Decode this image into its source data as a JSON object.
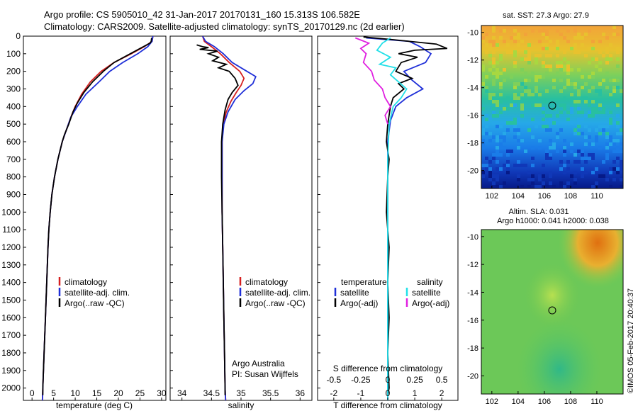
{
  "title_line1": "Argo profile: CS 5905010_42 31-Jan-2017 20170131_160 15.313S 106.582E",
  "title_line2": "Climatology: CARS2009. Satellite-adjusted climatology: synTS_20170129.nc (2d earlier)",
  "watermark": "©IMOS 05-Feb-2017 20:40:37",
  "colors": {
    "climatology": "#d62020",
    "satellite": "#1f2fd8",
    "argo": "#000000",
    "sat_salinity": "#22e0e8",
    "argo_salinity": "#e020e0"
  },
  "chart_data": [
    {
      "type": "line",
      "panel": "temperature",
      "xlabel": "temperature (deg C)",
      "ylabel": "",
      "xlim": [
        -2,
        31
      ],
      "ylim": [
        2070,
        0
      ],
      "xticks": [
        0,
        5,
        10,
        15,
        20,
        25,
        30
      ],
      "yticks": [
        0,
        100,
        200,
        300,
        400,
        500,
        600,
        700,
        800,
        900,
        1000,
        1100,
        1200,
        1300,
        1400,
        1500,
        1600,
        1700,
        1800,
        1900,
        2000
      ],
      "legend": [
        "climatology",
        "satellite-adj. clim.",
        "Argo(..raw -QC)"
      ],
      "legend_position": "lower-center",
      "series": [
        {
          "name": "climatology",
          "color": "#d62020",
          "points": [
            [
              28,
              0
            ],
            [
              27.8,
              30
            ],
            [
              26,
              60
            ],
            [
              23,
              100
            ],
            [
              19,
              150
            ],
            [
              16,
              200
            ],
            [
              13.5,
              260
            ],
            [
              11.5,
              330
            ],
            [
              10,
              400
            ],
            [
              9,
              460
            ],
            [
              8,
              530
            ],
            [
              7,
              600
            ],
            [
              6,
              700
            ],
            [
              5.2,
              800
            ],
            [
              4.6,
              900
            ],
            [
              4.2,
              1000
            ],
            [
              3.9,
              1100
            ],
            [
              3.7,
              1200
            ],
            [
              3.4,
              1400
            ],
            [
              3.1,
              1600
            ],
            [
              2.8,
              1800
            ],
            [
              2.5,
              2000
            ],
            [
              2.4,
              2070
            ]
          ]
        },
        {
          "name": "satellite-adj. clim.",
          "color": "#1f2fd8",
          "points": [
            [
              28,
              0
            ],
            [
              27.8,
              30
            ],
            [
              26.8,
              60
            ],
            [
              24.5,
              100
            ],
            [
              21,
              150
            ],
            [
              18,
              200
            ],
            [
              15.5,
              260
            ],
            [
              12.5,
              330
            ],
            [
              10.5,
              400
            ],
            [
              9,
              460
            ],
            [
              8,
              530
            ],
            [
              7,
              600
            ],
            [
              6,
              700
            ],
            [
              5.2,
              800
            ],
            [
              4.6,
              900
            ],
            [
              4.2,
              1000
            ],
            [
              3.9,
              1100
            ],
            [
              3.7,
              1200
            ],
            [
              3.4,
              1400
            ],
            [
              3.1,
              1600
            ],
            [
              2.8,
              1800
            ],
            [
              2.5,
              2000
            ],
            [
              2.4,
              2070
            ]
          ]
        },
        {
          "name": "Argo(..raw -QC)",
          "color": "#000000",
          "points": [
            [
              27.7,
              10
            ],
            [
              27.6,
              30
            ],
            [
              27.3,
              40
            ],
            [
              25,
              70
            ],
            [
              22,
              110
            ],
            [
              19,
              150
            ],
            [
              16.5,
              200
            ],
            [
              14,
              260
            ],
            [
              12,
              320
            ],
            [
              10.5,
              380
            ],
            [
              9.5,
              430
            ],
            [
              8.5,
              500
            ],
            [
              7.5,
              560
            ],
            [
              7,
              600
            ],
            [
              6,
              700
            ],
            [
              5.2,
              800
            ],
            [
              4.6,
              900
            ],
            [
              4.2,
              1000
            ],
            [
              3.9,
              1100
            ],
            [
              3.7,
              1200
            ],
            [
              3.4,
              1400
            ],
            [
              3.1,
              1600
            ],
            [
              2.8,
              1800
            ],
            [
              2.5,
              2000
            ],
            [
              2.5,
              2040
            ]
          ]
        }
      ]
    },
    {
      "type": "line",
      "panel": "salinity",
      "xlabel": "salinity",
      "xlim": [
        33.8,
        36.2
      ],
      "ylim": [
        2070,
        0
      ],
      "xticks": [
        34,
        34.5,
        35,
        35.5,
        36
      ],
      "legend": [
        "climatology",
        "satellite-adj. clim.",
        "Argo(..raw -QC)"
      ],
      "legend_position": "lower-center",
      "annotation_lines": [
        "Argo Australia",
        "PI: Susan Wijffels"
      ],
      "series": [
        {
          "name": "climatology",
          "color": "#d62020",
          "points": [
            [
              34.35,
              0
            ],
            [
              34.38,
              30
            ],
            [
              34.5,
              60
            ],
            [
              34.65,
              100
            ],
            [
              34.8,
              150
            ],
            [
              34.98,
              200
            ],
            [
              35.05,
              240
            ],
            [
              35.0,
              280
            ],
            [
              34.92,
              320
            ],
            [
              34.83,
              370
            ],
            [
              34.75,
              430
            ],
            [
              34.7,
              500
            ],
            [
              34.68,
              600
            ],
            [
              34.68,
              800
            ],
            [
              34.68,
              1000
            ],
            [
              34.69,
              1200
            ],
            [
              34.7,
              1400
            ],
            [
              34.71,
              1600
            ],
            [
              34.72,
              1800
            ],
            [
              34.73,
              2000
            ],
            [
              34.74,
              2070
            ]
          ]
        },
        {
          "name": "satellite-adj. clim.",
          "color": "#1f2fd8",
          "points": [
            [
              34.35,
              0
            ],
            [
              34.4,
              30
            ],
            [
              34.55,
              60
            ],
            [
              34.7,
              100
            ],
            [
              34.85,
              150
            ],
            [
              35.05,
              190
            ],
            [
              35.25,
              230
            ],
            [
              35.2,
              270
            ],
            [
              35.05,
              310
            ],
            [
              34.9,
              360
            ],
            [
              34.78,
              430
            ],
            [
              34.71,
              500
            ],
            [
              34.68,
              600
            ],
            [
              34.68,
              800
            ],
            [
              34.68,
              1000
            ],
            [
              34.69,
              1200
            ],
            [
              34.7,
              1400
            ],
            [
              34.71,
              1600
            ],
            [
              34.72,
              1800
            ],
            [
              34.73,
              2000
            ],
            [
              34.74,
              2070
            ]
          ]
        },
        {
          "name": "Argo(..raw -QC)",
          "color": "#000000",
          "points": [
            [
              34.25,
              50
            ],
            [
              34.35,
              60
            ],
            [
              34.45,
              65
            ],
            [
              34.3,
              75
            ],
            [
              34.6,
              85
            ],
            [
              34.45,
              100
            ],
            [
              34.62,
              120
            ],
            [
              34.52,
              140
            ],
            [
              34.75,
              160
            ],
            [
              34.62,
              180
            ],
            [
              34.8,
              200
            ],
            [
              34.9,
              240
            ],
            [
              34.95,
              280
            ],
            [
              34.85,
              320
            ],
            [
              34.78,
              360
            ],
            [
              34.73,
              420
            ],
            [
              34.69,
              500
            ],
            [
              34.67,
              600
            ],
            [
              34.67,
              800
            ],
            [
              34.68,
              1000
            ],
            [
              34.69,
              1200
            ],
            [
              34.7,
              1400
            ],
            [
              34.71,
              1600
            ],
            [
              34.72,
              1800
            ],
            [
              34.73,
              2000
            ],
            [
              34.73,
              2040
            ]
          ]
        }
      ]
    },
    {
      "type": "line",
      "panel": "difference",
      "xlabel": "T difference from climatology",
      "xlabel_top": "S difference from climatology",
      "xlim": [
        -2.6,
        2.6
      ],
      "ylim": [
        2070,
        0
      ],
      "xticks": [
        -2,
        -1,
        0,
        1,
        2
      ],
      "xticks_s": [
        -0.5,
        -0.25,
        0,
        0.25,
        0.5
      ],
      "legend_titles": [
        "temperature",
        "salinity"
      ],
      "legend": [
        "satellite",
        "Argo(-adj)",
        "satellite",
        "Argo(-adj)"
      ],
      "series": [
        {
          "name": "satellite (temperature)",
          "color": "#1f2fd8",
          "points": [
            [
              -0.8,
              10
            ],
            [
              0.8,
              30
            ],
            [
              1.2,
              60
            ],
            [
              1.6,
              100
            ],
            [
              1.4,
              150
            ],
            [
              0.6,
              200
            ],
            [
              0.9,
              250
            ],
            [
              1.3,
              300
            ],
            [
              0.7,
              350
            ],
            [
              0.3,
              400
            ],
            [
              0.1,
              480
            ],
            [
              0,
              600
            ],
            [
              0,
              2070
            ]
          ]
        },
        {
          "name": "Argo(-adj) (temperature)",
          "color": "#000000",
          "points": [
            [
              -0.9,
              5
            ],
            [
              0.2,
              20
            ],
            [
              1.8,
              45
            ],
            [
              2.2,
              70
            ],
            [
              1.0,
              80
            ],
            [
              0.4,
              100
            ],
            [
              1.1,
              120
            ],
            [
              0.5,
              150
            ],
            [
              0.3,
              200
            ],
            [
              0.9,
              240
            ],
            [
              0.4,
              270
            ],
            [
              0.6,
              300
            ],
            [
              0.2,
              350
            ],
            [
              0.1,
              400
            ],
            [
              0,
              500
            ],
            [
              -0.05,
              600
            ],
            [
              0.05,
              700
            ],
            [
              0,
              800
            ],
            [
              -0.05,
              1000
            ],
            [
              0.05,
              1200
            ],
            [
              0,
              1400
            ],
            [
              0.05,
              1600
            ],
            [
              0,
              1800
            ],
            [
              0.05,
              2000
            ],
            [
              0,
              2040
            ]
          ]
        },
        {
          "name": "satellite (salinity)",
          "color": "#22e0e8",
          "points": [
            [
              0.1,
              10
            ],
            [
              -0.2,
              40
            ],
            [
              -0.4,
              80
            ],
            [
              0.1,
              120
            ],
            [
              -0.3,
              160
            ],
            [
              0.3,
              180
            ],
            [
              0.1,
              220
            ],
            [
              0.4,
              260
            ],
            [
              0.7,
              300
            ],
            [
              0.5,
              350
            ],
            [
              0.2,
              400
            ],
            [
              0.05,
              500
            ],
            [
              0,
              700
            ],
            [
              0,
              900
            ],
            [
              0,
              2070
            ]
          ]
        },
        {
          "name": "Argo(-adj) (salinity)",
          "color": "#e020e0",
          "points": [
            [
              -1.2,
              10
            ],
            [
              -0.7,
              40
            ],
            [
              -1.0,
              70
            ],
            [
              -0.8,
              100
            ],
            [
              -0.9,
              150
            ],
            [
              -0.6,
              200
            ],
            [
              -0.5,
              250
            ],
            [
              -0.2,
              300
            ],
            [
              -0.1,
              350
            ],
            [
              0.1,
              400
            ],
            [
              -0.1,
              450
            ],
            [
              0,
              500
            ]
          ]
        }
      ]
    },
    {
      "type": "heatmap",
      "panel": "sst",
      "title": "sat. SST: 27.3  Argo: 27.9",
      "xlim": [
        101.2,
        112
      ],
      "ylim": [
        -21.3,
        -9.5
      ],
      "xticks": [
        102,
        104,
        106,
        108,
        110
      ],
      "yticks": [
        -10,
        -12,
        -14,
        -16,
        -18,
        -20
      ],
      "marker": [
        106.6,
        -15.3
      ]
    },
    {
      "type": "heatmap",
      "panel": "sla",
      "title": "Altim. SLA: 0.031",
      "subtitle": "Argo h1000: 0.041 h2000: 0.038",
      "xlim": [
        101.2,
        112
      ],
      "ylim": [
        -21.3,
        -9.5
      ],
      "xticks": [
        102,
        104,
        106,
        108,
        110
      ],
      "yticks": [
        -10,
        -12,
        -14,
        -16,
        -18,
        -20
      ],
      "marker": [
        106.6,
        -15.3
      ]
    }
  ]
}
